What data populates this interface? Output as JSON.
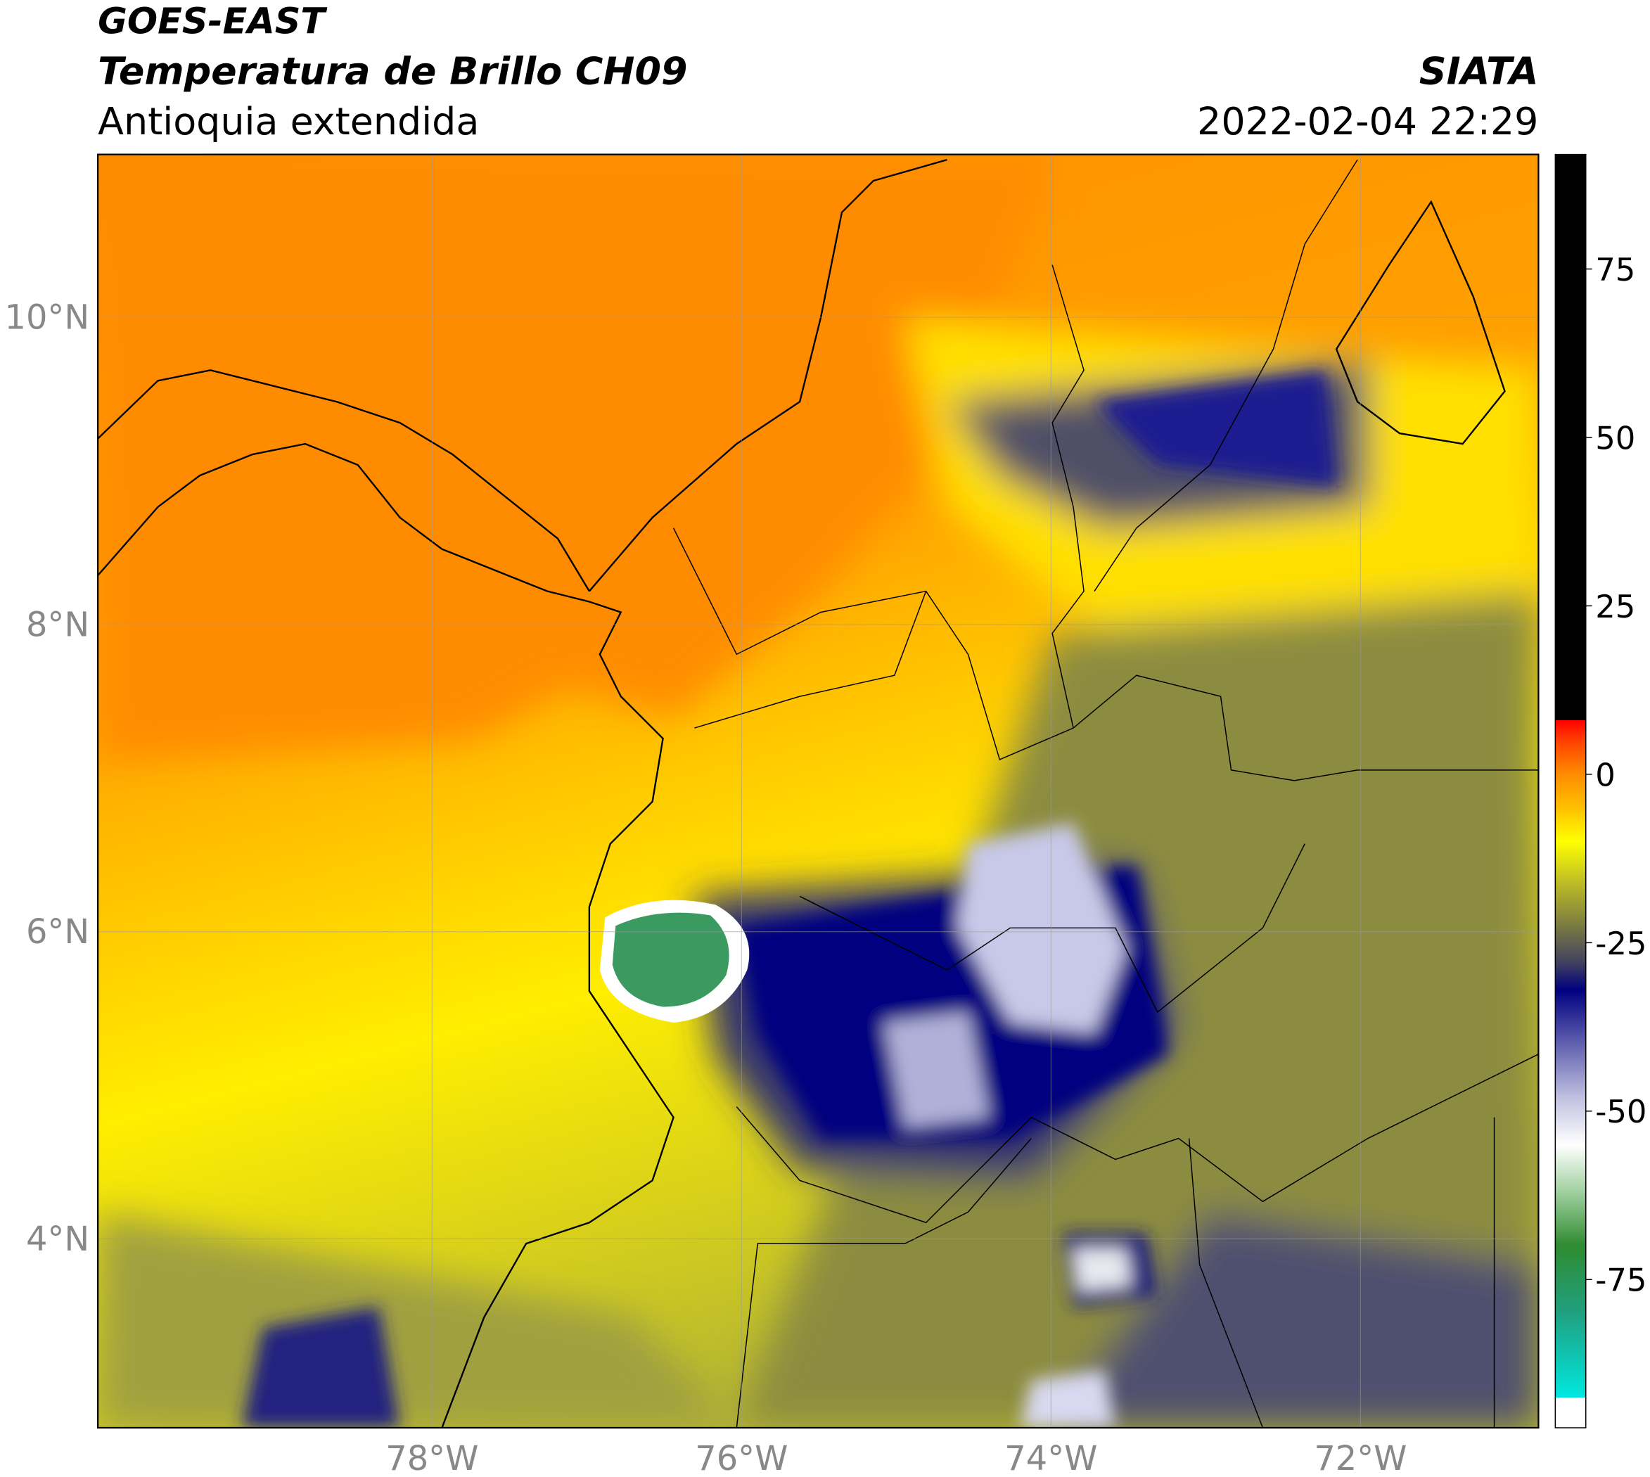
{
  "header": {
    "line1": "GOES-EAST",
    "line2": "Temperatura de Brillo CH09",
    "line3": "Antioquia extendida",
    "source": "SIATA",
    "datetime": "2022-02-04 22:29"
  },
  "map": {
    "xlim": [
      -80.16,
      -70.85
    ],
    "ylim": [
      2.77,
      11.06
    ],
    "xticks": [
      {
        "value": -78,
        "label": "78°W"
      },
      {
        "value": -76,
        "label": "76°W"
      },
      {
        "value": -74,
        "label": "74°W"
      },
      {
        "value": -72,
        "label": "72°W"
      }
    ],
    "yticks": [
      {
        "value": 4,
        "label": "4°N"
      },
      {
        "value": 6,
        "label": "6°N"
      },
      {
        "value": 8,
        "label": "8°N"
      },
      {
        "value": 10,
        "label": "10°N"
      }
    ],
    "grid": true
  },
  "colorbar": {
    "lim": [
      -97,
      92
    ],
    "ticks": [
      75,
      50,
      25,
      0,
      -25,
      -50,
      -75
    ],
    "colormap": [
      {
        "value": -97,
        "color": "#ffffff"
      },
      {
        "value": -92.5,
        "color": "#ffffff"
      },
      {
        "value": -92.5,
        "color": "#00e8e0"
      },
      {
        "value": -80,
        "color": "#20a080"
      },
      {
        "value": -70,
        "color": "#2e8b30"
      },
      {
        "value": -62,
        "color": "#a0d0a0"
      },
      {
        "value": -55,
        "color": "#ffffff"
      },
      {
        "value": -48,
        "color": "#c0c0e0"
      },
      {
        "value": -40,
        "color": "#6060b0"
      },
      {
        "value": -32,
        "color": "#000080"
      },
      {
        "value": -28,
        "color": "#404060"
      },
      {
        "value": -22,
        "color": "#808040"
      },
      {
        "value": -15,
        "color": "#c8c820"
      },
      {
        "value": -10,
        "color": "#ffff00"
      },
      {
        "value": -5,
        "color": "#ffc000"
      },
      {
        "value": 0,
        "color": "#ff8c00"
      },
      {
        "value": 5,
        "color": "#ff4000"
      },
      {
        "value": 8,
        "color": "#ff0000"
      },
      {
        "value": 8,
        "color": "#000000"
      },
      {
        "value": 92,
        "color": "#000000"
      }
    ]
  }
}
